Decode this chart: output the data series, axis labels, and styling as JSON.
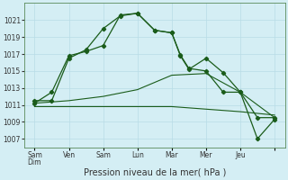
{
  "xlabel": "Pression niveau de la mer( hPa )",
  "ylim": [
    1006,
    1023
  ],
  "yticks": [
    1007,
    1009,
    1011,
    1013,
    1015,
    1017,
    1019,
    1021
  ],
  "background_color": "#d4eef4",
  "grid_color": "#b8dce6",
  "line_color": "#1a5c1a",
  "xtick_positions": [
    0,
    1,
    2,
    3,
    4,
    5,
    6,
    7
  ],
  "xtick_names": [
    "Sam\nDim",
    "Ven",
    "Sam",
    "Lun",
    "Mar",
    "Mer",
    "Jeu",
    ""
  ],
  "n_points": 14,
  "series": {
    "line1_x": [
      0,
      0.5,
      1.0,
      1.5,
      2.0,
      2.5,
      3.0,
      3.5,
      4.0,
      4.25,
      4.5,
      5.0,
      5.5,
      6.0,
      6.5,
      7.0
    ],
    "line1_y": [
      1011.5,
      1011.5,
      1016.5,
      1017.5,
      1020.0,
      1021.5,
      1021.8,
      1019.8,
      1019.5,
      1016.8,
      1015.2,
      1016.5,
      1014.8,
      1012.5,
      1007.0,
      1009.3
    ],
    "line2_x": [
      0,
      0.5,
      1.0,
      1.5,
      2.0,
      2.5,
      3.0,
      3.5,
      4.0,
      4.25,
      4.5,
      5.0,
      5.5,
      6.0,
      6.5,
      7.0
    ],
    "line2_y": [
      1011.2,
      1012.5,
      1016.8,
      1017.3,
      1018.0,
      1021.6,
      1021.8,
      1019.8,
      1019.5,
      1016.9,
      1015.3,
      1015.0,
      1012.5,
      1012.5,
      1009.5,
      1009.5
    ],
    "line3_x": [
      0,
      1,
      2,
      3,
      4,
      5,
      6,
      7
    ],
    "line3_y": [
      1011.2,
      1011.5,
      1012.0,
      1012.8,
      1014.5,
      1014.7,
      1012.5,
      1009.5
    ],
    "line4_x": [
      0,
      1,
      2,
      3,
      4,
      5,
      6,
      7
    ],
    "line4_y": [
      1010.8,
      1010.8,
      1010.8,
      1010.8,
      1010.8,
      1010.5,
      1010.2,
      1009.8
    ]
  }
}
